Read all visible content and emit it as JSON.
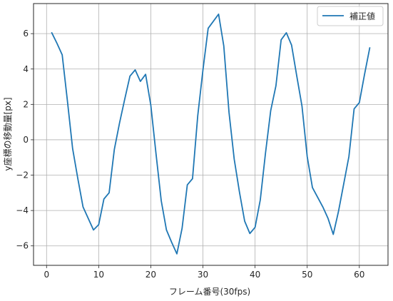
{
  "chart_data": {
    "type": "line",
    "title": "",
    "xlabel": "フレーム番号(30fps)",
    "ylabel": "y座標の移動量[px]",
    "xlim": [
      -2.5,
      65.5
    ],
    "ylim": [
      -7.1,
      7.7
    ],
    "xticks": [
      0,
      10,
      20,
      30,
      40,
      50,
      60
    ],
    "yticks": [
      -6,
      -4,
      -2,
      0,
      2,
      4,
      6
    ],
    "xtick_labels": [
      "0",
      "10",
      "20",
      "30",
      "40",
      "50",
      "60"
    ],
    "ytick_labels": [
      "−6",
      "−4",
      "−2",
      "0",
      "2",
      "4",
      "6"
    ],
    "grid": true,
    "legend_position": "top-right",
    "series": [
      {
        "name": "補正値",
        "color": "#1f77b4",
        "x": [
          1,
          2,
          3,
          4,
          5,
          6,
          7,
          8,
          9,
          10,
          11,
          12,
          13,
          14,
          15,
          16,
          17,
          18,
          19,
          20,
          21,
          22,
          23,
          24,
          25,
          26,
          27,
          28,
          29,
          30,
          31,
          32,
          33,
          34,
          35,
          36,
          37,
          38,
          39,
          40,
          41,
          42,
          43,
          44,
          45,
          46,
          47,
          48,
          49,
          50,
          51,
          52,
          53,
          54,
          55,
          56,
          57,
          58,
          59,
          60,
          61,
          62
        ],
        "y": [
          6.05,
          5.45,
          4.8,
          2.2,
          -0.5,
          -2.2,
          -3.8,
          -4.45,
          -5.1,
          -4.8,
          -3.35,
          -3.0,
          -0.55,
          0.95,
          2.3,
          3.6,
          3.95,
          3.3,
          3.7,
          1.95,
          -0.8,
          -3.45,
          -5.1,
          -5.8,
          -6.45,
          -5.0,
          -2.55,
          -2.2,
          1.35,
          3.95,
          6.3,
          6.7,
          7.1,
          5.3,
          1.55,
          -1.1,
          -2.95,
          -4.6,
          -5.3,
          -4.95,
          -3.4,
          -0.75,
          1.65,
          3.05,
          5.65,
          6.05,
          5.35,
          3.6,
          1.9,
          -0.95,
          -2.7,
          -3.25,
          -3.8,
          -4.45,
          -5.35,
          -4.05,
          -2.5,
          -0.95,
          1.75,
          2.1,
          3.7,
          5.2
        ]
      }
    ]
  }
}
